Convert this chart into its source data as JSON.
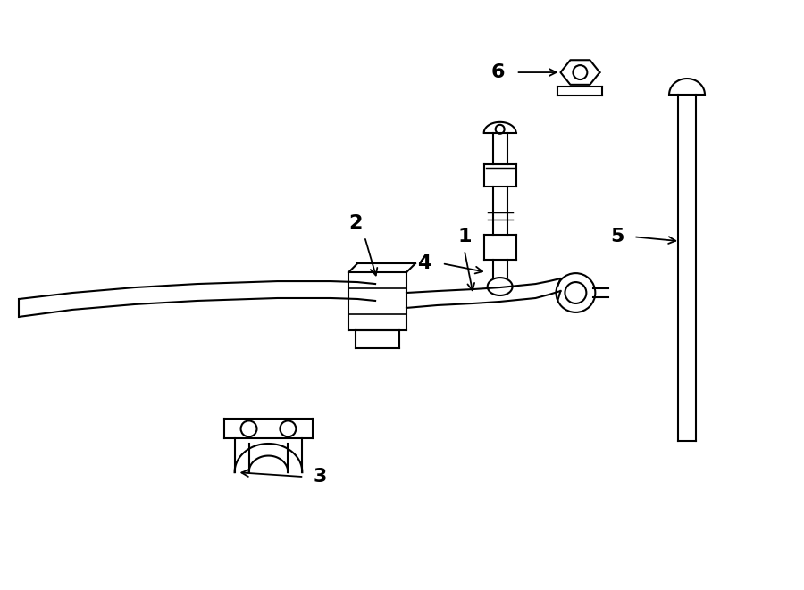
{
  "bg_color": "#ffffff",
  "line_color": "#000000",
  "fig_width": 9.0,
  "fig_height": 6.61,
  "dpi": 100,
  "lw": 1.5
}
